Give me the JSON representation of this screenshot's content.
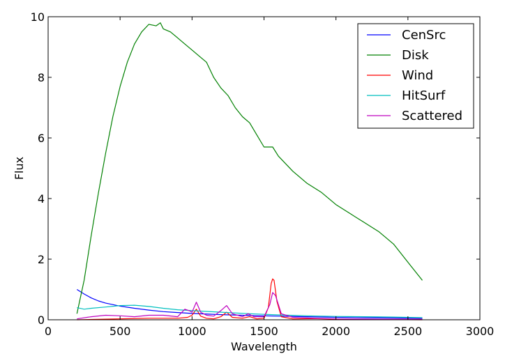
{
  "chart_data": {
    "type": "line",
    "title": "",
    "xlabel": "Wavelength",
    "ylabel": "Flux",
    "xlim": [
      0,
      3000
    ],
    "ylim": [
      0,
      10
    ],
    "xticks": [
      0,
      500,
      1000,
      1500,
      2000,
      2500,
      3000
    ],
    "yticks": [
      0,
      2,
      4,
      6,
      8,
      10
    ],
    "xtick_labels": [
      "0",
      "500",
      "1000",
      "1500",
      "2000",
      "2500",
      "3000"
    ],
    "ytick_labels": [
      "0",
      "2",
      "4",
      "6",
      "8",
      "10"
    ],
    "grid": false,
    "legend_position": "top-right",
    "series": [
      {
        "name": "CenSrc",
        "color": "#0000ff",
        "x": [
          200,
          250,
          300,
          350,
          400,
          500,
          600,
          700,
          800,
          900,
          1000,
          1200,
          1400,
          1600,
          1800,
          2000,
          2200,
          2400,
          2600
        ],
        "y": [
          1.0,
          0.85,
          0.72,
          0.62,
          0.55,
          0.45,
          0.38,
          0.32,
          0.27,
          0.24,
          0.21,
          0.17,
          0.14,
          0.12,
          0.1,
          0.08,
          0.07,
          0.06,
          0.05
        ]
      },
      {
        "name": "Disk",
        "color": "#008000",
        "x": [
          200,
          250,
          300,
          350,
          400,
          450,
          500,
          550,
          600,
          650,
          700,
          750,
          780,
          800,
          850,
          900,
          950,
          1000,
          1050,
          1100,
          1150,
          1200,
          1250,
          1300,
          1350,
          1400,
          1450,
          1500,
          1560,
          1600,
          1700,
          1800,
          1900,
          2000,
          2100,
          2200,
          2300,
          2400,
          2500,
          2600
        ],
        "y": [
          0.2,
          1.3,
          2.8,
          4.2,
          5.5,
          6.7,
          7.7,
          8.5,
          9.1,
          9.5,
          9.75,
          9.7,
          9.8,
          9.6,
          9.5,
          9.3,
          9.1,
          8.9,
          8.7,
          8.5,
          8.0,
          7.65,
          7.4,
          7.0,
          6.7,
          6.5,
          6.1,
          5.7,
          5.7,
          5.4,
          4.9,
          4.5,
          4.2,
          3.8,
          3.5,
          3.2,
          2.9,
          2.5,
          1.9,
          1.3
        ]
      },
      {
        "name": "Wind",
        "color": "#ff0000",
        "x": [
          200,
          400,
          700,
          900,
          970,
          1000,
          1030,
          1060,
          1100,
          1150,
          1200,
          1240,
          1280,
          1350,
          1400,
          1450,
          1500,
          1530,
          1550,
          1560,
          1570,
          1590,
          1620,
          1700,
          1850,
          2000,
          2300,
          2600
        ],
        "y": [
          0.0,
          0.02,
          0.05,
          0.05,
          0.08,
          0.15,
          0.35,
          0.12,
          0.05,
          0.03,
          0.1,
          0.25,
          0.08,
          0.05,
          0.1,
          0.03,
          0.05,
          0.4,
          1.2,
          1.35,
          1.3,
          0.6,
          0.1,
          0.03,
          0.04,
          0.02,
          0.01,
          0.0
        ]
      },
      {
        "name": "HitSurf",
        "color": "#00bfbf",
        "x": [
          200,
          250,
          300,
          400,
          500,
          600,
          700,
          800,
          900,
          1000,
          1200,
          1400,
          1600,
          1800,
          2000,
          2200,
          2400,
          2600
        ],
        "y": [
          0.4,
          0.35,
          0.38,
          0.42,
          0.47,
          0.48,
          0.44,
          0.38,
          0.33,
          0.3,
          0.25,
          0.2,
          0.16,
          0.13,
          0.11,
          0.1,
          0.09,
          0.07
        ]
      },
      {
        "name": "Scattered",
        "color": "#bf00bf",
        "x": [
          200,
          300,
          400,
          500,
          600,
          700,
          800,
          900,
          950,
          980,
          1000,
          1030,
          1060,
          1100,
          1150,
          1200,
          1240,
          1280,
          1350,
          1390,
          1430,
          1500,
          1540,
          1560,
          1580,
          1620,
          1700,
          1850,
          2000,
          2300,
          2600
        ],
        "y": [
          0.03,
          0.1,
          0.15,
          0.13,
          0.1,
          0.15,
          0.15,
          0.1,
          0.35,
          0.3,
          0.25,
          0.58,
          0.25,
          0.15,
          0.12,
          0.3,
          0.47,
          0.2,
          0.1,
          0.2,
          0.1,
          0.1,
          0.5,
          0.9,
          0.8,
          0.2,
          0.08,
          0.05,
          0.03,
          0.02,
          0.02
        ]
      }
    ]
  }
}
